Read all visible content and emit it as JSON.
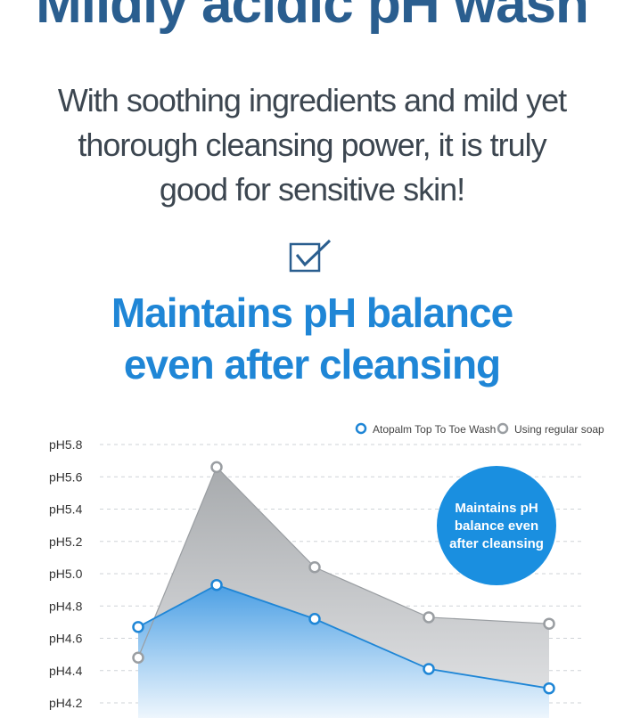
{
  "headline": "Mildly acidic pH wash",
  "subtitle": {
    "lines": [
      "With soothing ingredients and mild yet",
      "thorough cleansing power, it is truly",
      "good for sensitive skin!"
    ]
  },
  "checkbox_icon": "check-square-icon",
  "chart_data": {
    "type": "area",
    "title_lines": [
      "Maintains pH balance",
      "even after cleansing"
    ],
    "xlabel": "",
    "ylabel": "",
    "y_ticks": [
      "pH5.8",
      "pH5.6",
      "pH5.4",
      "pH5.2",
      "pH5.0",
      "pH4.8",
      "pH4.6",
      "pH4.4",
      "pH4.2"
    ],
    "ylim": [
      4.2,
      5.8
    ],
    "grid": true,
    "legend_position": "top-right",
    "series": [
      {
        "name": "Atopalm Top To Toe Wash",
        "values": [
          4.67,
          4.93,
          4.72,
          4.41,
          4.29
        ],
        "color": "#1f86d6"
      },
      {
        "name": "Using regular soap",
        "values": [
          4.48,
          5.66,
          5.04,
          4.73,
          4.69
        ],
        "color": "#9a9ea2"
      }
    ],
    "annotation_lines": [
      "Maintains pH",
      "balance even",
      "after cleansing"
    ],
    "annotation_color": "#1a8fe0"
  }
}
